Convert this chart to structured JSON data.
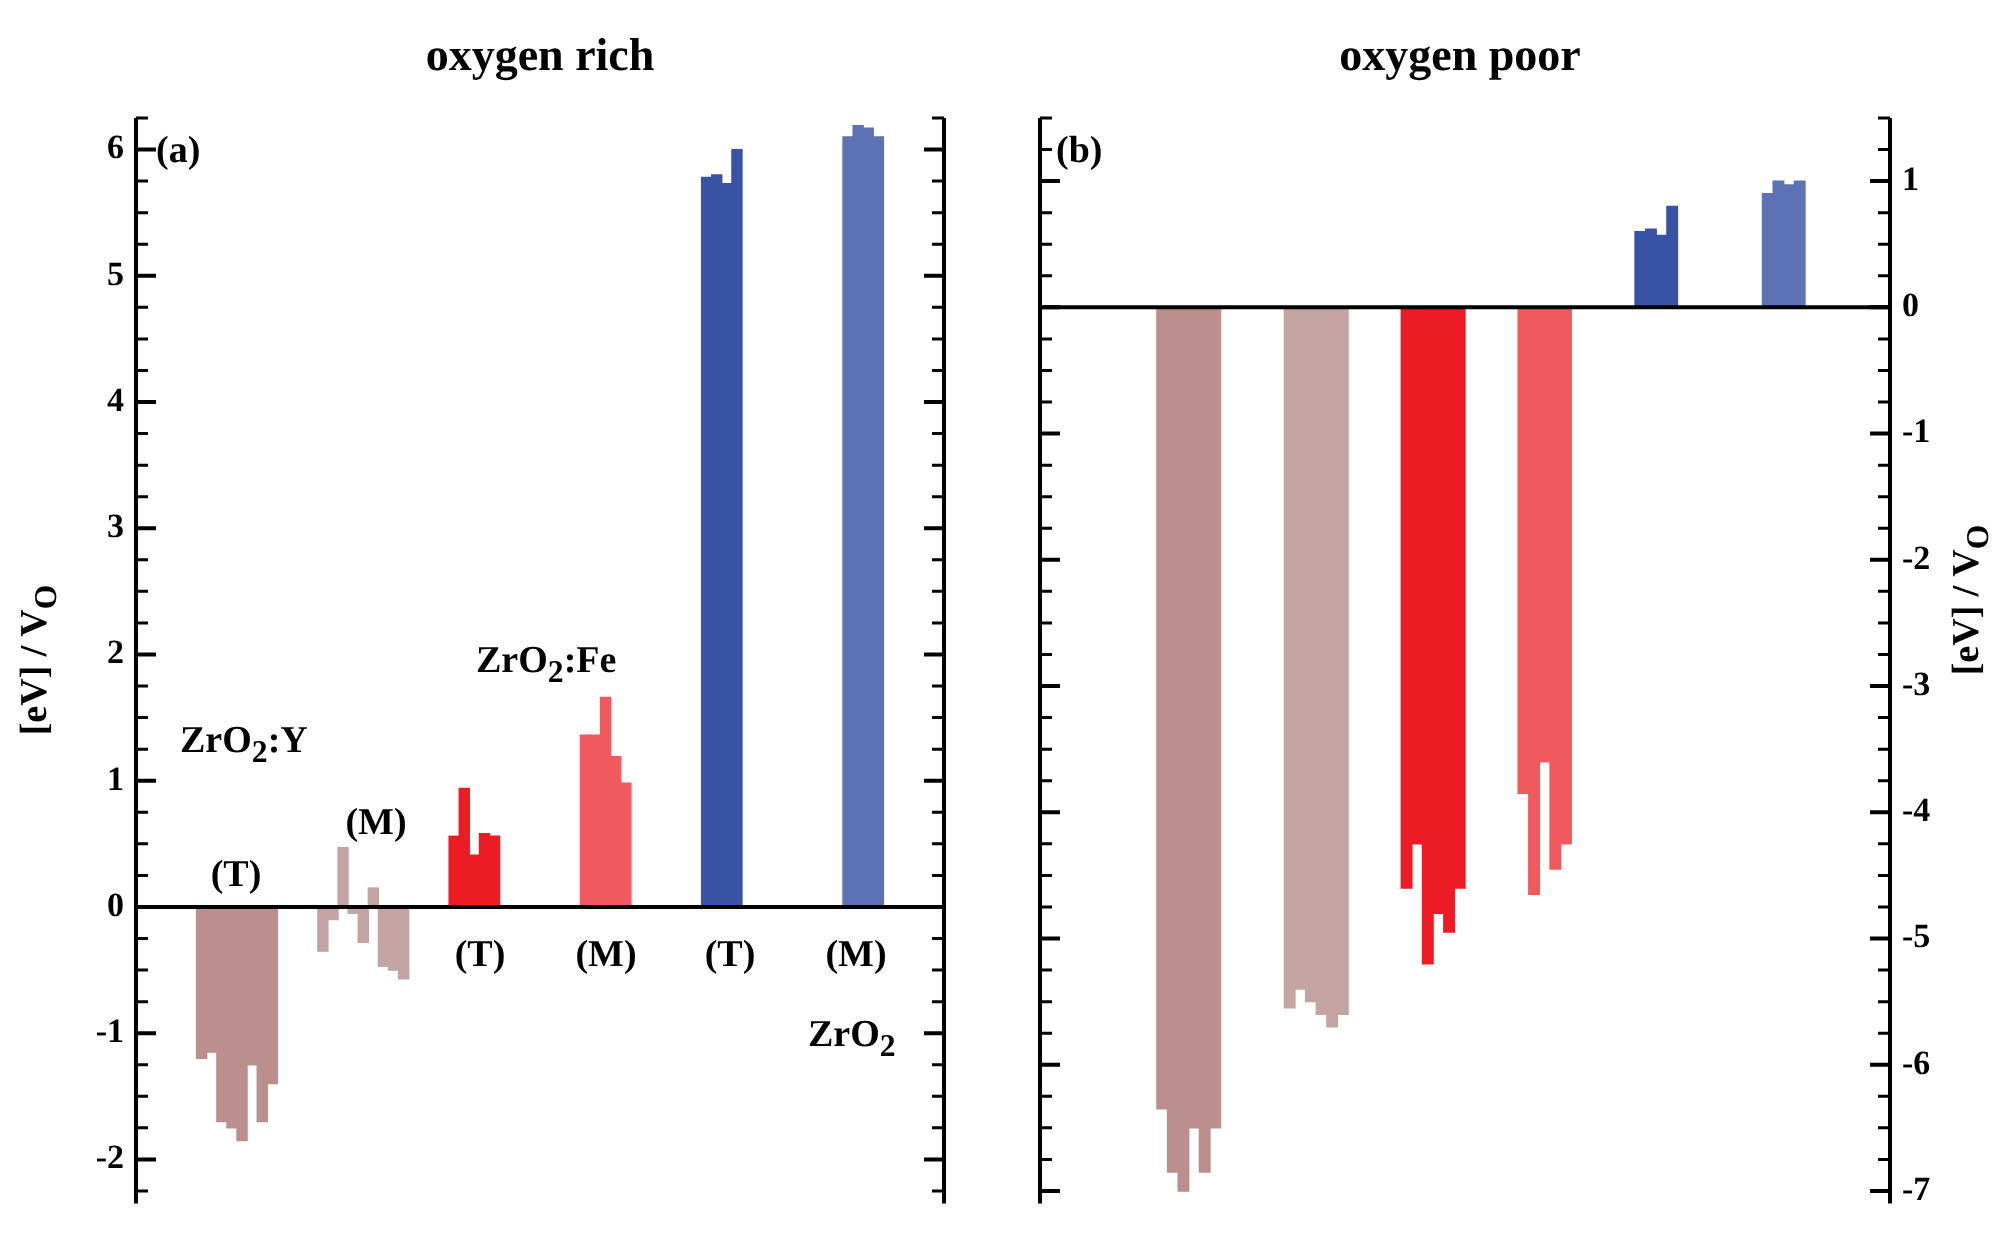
{
  "chart_data": [
    {
      "type": "bar",
      "title": "oxygen rich",
      "ylabel": "[eV] / V$_{O}$",
      "tick_labels": "y",
      "categories": [
        null,
        null,
        null,
        null,
        null,
        null,
        null,
        null,
        null,
        null,
        null,
        null,
        null,
        null,
        null,
        null,
        null,
        null,
        null,
        null,
        null,
        null,
        null,
        null,
        null,
        null,
        null,
        null,
        null,
        null,
        null,
        null,
        null,
        null,
        null,
        null,
        null,
        null,
        null,
        null,
        null,
        null,
        null,
        null,
        null,
        null,
        null,
        null,
        null,
        null,
        null,
        null,
        null,
        null,
        null,
        null,
        null,
        null,
        null,
        null,
        null,
        null,
        null,
        null,
        null,
        null,
        null,
        null,
        null,
        null,
        null,
        null,
        null,
        null,
        null,
        null,
        null,
        null,
        null,
        null
      ],
      "values": [
        null,
        null,
        null,
        null,
        null,
        null,
        -1.2,
        -1.15,
        -1.7,
        -1.75,
        -1.85,
        -1.25,
        -1.7,
        -1.4,
        null,
        null,
        null,
        null,
        -0.35,
        -0.1,
        0.47,
        -0.05,
        -0.28,
        0.15,
        -0.47,
        -0.5,
        -0.57,
        null,
        null,
        null,
        null,
        0.56,
        0.94,
        0.41,
        0.58,
        0.56,
        null,
        null,
        null,
        null,
        null,
        null,
        null,
        null,
        1.36,
        1.36,
        1.66,
        1.19,
        0.98,
        null,
        null,
        null,
        null,
        null,
        null,
        null,
        5.78,
        5.8,
        5.73,
        6.0,
        null,
        null,
        null,
        null,
        null,
        null,
        null,
        null,
        null,
        null,
        6.1,
        6.19,
        6.17,
        6.1,
        null,
        null,
        null,
        null,
        null,
        null
      ],
      "colors": [
        null,
        null,
        null,
        null,
        null,
        null,
        "#bc8f8f",
        "#bc8f8f",
        "#bc8f8f",
        "#bc8f8f",
        "#bc8f8f",
        "#bc8f8f",
        "#bc8f8f",
        "#bc8f8f",
        null,
        null,
        null,
        null,
        "#c4a3a3",
        "#c4a3a3",
        "#c4a3a3",
        "#c4a3a3",
        "#c4a3a3",
        "#c4a3a3",
        "#c4a3a3",
        "#c4a3a3",
        "#c4a3a3",
        null,
        null,
        null,
        null,
        "#ed1c24",
        "#ed1c24",
        "#ed1c24",
        "#ed1c24",
        "#ed1c24",
        null,
        null,
        null,
        null,
        null,
        null,
        null,
        null,
        "#f05a5f",
        "#f05a5f",
        "#f05a5f",
        "#f05a5f",
        "#f05a5f",
        null,
        null,
        null,
        null,
        null,
        null,
        null,
        "#3953a4",
        "#3953a4",
        "#3953a4",
        "#3953a4",
        null,
        null,
        null,
        null,
        null,
        null,
        null,
        null,
        null,
        null,
        "#5c72b4",
        "#5c72b4",
        "#5c72b4",
        "#5c72b4",
        null,
        null,
        null,
        null,
        null,
        null
      ],
      "ylim": [
        -2.35,
        6.25
      ],
      "yticks": [
        {
          "value": -2.25,
          "label": null
        },
        -2,
        {
          "value": -1.75,
          "label": null
        },
        {
          "value": -1.5,
          "label": null
        },
        {
          "value": -1.25,
          "label": null
        },
        -1,
        {
          "value": -0.75,
          "label": null
        },
        {
          "value": -0.5,
          "label": null
        },
        {
          "value": -0.25,
          "label": null
        },
        0,
        {
          "value": 0.25,
          "label": null
        },
        {
          "value": 0.5,
          "label": null
        },
        {
          "value": 0.75,
          "label": null
        },
        1,
        {
          "value": 1.25,
          "label": null
        },
        {
          "value": 1.5,
          "label": null
        },
        {
          "value": 1.75,
          "label": null
        },
        2,
        {
          "value": 2.25,
          "label": null
        },
        {
          "value": 2.5,
          "label": null
        },
        {
          "value": 2.75,
          "label": null
        },
        3,
        {
          "value": 3.25,
          "label": null
        },
        {
          "value": 3.5,
          "label": null
        },
        {
          "value": 3.75,
          "label": null
        },
        4,
        {
          "value": 4.25,
          "label": null
        },
        {
          "value": 4.5,
          "label": null
        },
        {
          "value": 4.75,
          "label": null
        },
        5,
        {
          "value": 5.25,
          "label": null
        },
        {
          "value": 5.5,
          "label": null
        },
        {
          "value": 5.75,
          "label": null
        },
        6,
        {
          "value": 6.25,
          "label": null
        }
      ],
      "annotations": [
        "(a)",
        "ZrO$_{2}$:Y",
        "(T)",
        "(M)",
        "ZrO$_{2}$:Fe",
        "(T)",
        "(M)",
        "(T)",
        "(M)",
        "ZrO$_{2}$"
      ]
    },
    {
      "type": "bar",
      "title": "oxygen poor",
      "ylabel": "[eV] / V$_{O}$",
      "tick_labels": "y",
      "categories": [
        null,
        null,
        null,
        null,
        null,
        null,
        null,
        null,
        null,
        null,
        null,
        null,
        null,
        null,
        null,
        null,
        null,
        null,
        null,
        null,
        null,
        null,
        null,
        null,
        null,
        null,
        null,
        null,
        null,
        null,
        null,
        null,
        null,
        null,
        null,
        null,
        null,
        null,
        null,
        null,
        null,
        null,
        null,
        null,
        null,
        null,
        null,
        null,
        null,
        null,
        null,
        null,
        null,
        null,
        null,
        null,
        null,
        null,
        null,
        null,
        null,
        null,
        null,
        null,
        null,
        null,
        null,
        null,
        null,
        null,
        null,
        null,
        null,
        null,
        null,
        null,
        null,
        null,
        null,
        null
      ],
      "values": [
        null,
        null,
        null,
        null,
        null,
        null,
        null,
        null,
        null,
        null,
        null,
        -6.35,
        -6.85,
        -7.0,
        -6.5,
        -6.85,
        -6.5,
        null,
        null,
        null,
        null,
        null,
        null,
        -5.55,
        -5.4,
        -5.5,
        -5.6,
        -5.7,
        -5.6,
        null,
        null,
        null,
        null,
        null,
        -4.6,
        -4.25,
        -5.2,
        -4.8,
        -4.95,
        -4.6,
        null,
        null,
        null,
        null,
        null,
        -3.85,
        -4.65,
        -3.6,
        -4.45,
        -4.25,
        null,
        null,
        null,
        null,
        null,
        null,
        0.6,
        0.62,
        0.57,
        0.8,
        null,
        null,
        null,
        null,
        null,
        null,
        null,
        null,
        0.9,
        1.0,
        0.97,
        1.0,
        null,
        null,
        null,
        null,
        null,
        null,
        null,
        null
      ],
      "colors": [
        null,
        null,
        null,
        null,
        null,
        null,
        null,
        null,
        null,
        null,
        null,
        "#bc8f8f",
        "#bc8f8f",
        "#bc8f8f",
        "#bc8f8f",
        "#bc8f8f",
        "#bc8f8f",
        null,
        null,
        null,
        null,
        null,
        null,
        "#c4a3a3",
        "#c4a3a3",
        "#c4a3a3",
        "#c4a3a3",
        "#c4a3a3",
        "#c4a3a3",
        null,
        null,
        null,
        null,
        null,
        "#ed1c24",
        "#ed1c24",
        "#ed1c24",
        "#ed1c24",
        "#ed1c24",
        "#ed1c24",
        null,
        null,
        null,
        null,
        null,
        "#f05a5f",
        "#f05a5f",
        "#f05a5f",
        "#f05a5f",
        "#f05a5f",
        null,
        null,
        null,
        null,
        null,
        null,
        "#3953a4",
        "#3953a4",
        "#3953a4",
        "#3953a4",
        null,
        null,
        null,
        null,
        null,
        null,
        null,
        null,
        "#5c72b4",
        "#5c72b4",
        "#5c72b4",
        "#5c72b4",
        null,
        null,
        null,
        null,
        null,
        null,
        null,
        null
      ],
      "ylim": [
        -7.1,
        1.5
      ],
      "yticks": [
        -7,
        {
          "value": -6.75,
          "label": null
        },
        {
          "value": -6.5,
          "label": null
        },
        {
          "value": -6.25,
          "label": null
        },
        -6,
        {
          "value": -5.75,
          "label": null
        },
        {
          "value": -5.5,
          "label": null
        },
        {
          "value": -5.25,
          "label": null
        },
        -5,
        {
          "value": -4.75,
          "label": null
        },
        {
          "value": -4.5,
          "label": null
        },
        {
          "value": -4.25,
          "label": null
        },
        -4,
        {
          "value": -3.75,
          "label": null
        },
        {
          "value": -3.5,
          "label": null
        },
        {
          "value": -3.25,
          "label": null
        },
        -3,
        {
          "value": -2.75,
          "label": null
        },
        {
          "value": -2.5,
          "label": null
        },
        {
          "value": -2.25,
          "label": null
        },
        -2,
        {
          "value": -1.75,
          "label": null
        },
        {
          "value": -1.5,
          "label": null
        },
        {
          "value": -1.25,
          "label": null
        },
        -1,
        {
          "value": -0.75,
          "label": null
        },
        {
          "value": -0.5,
          "label": null
        },
        {
          "value": -0.25,
          "label": null
        },
        0,
        {
          "value": 0.25,
          "label": null
        },
        {
          "value": 0.5,
          "label": null
        },
        {
          "value": 0.75,
          "label": null
        },
        1,
        {
          "value": 1.25,
          "label": null
        },
        {
          "value": 1.5,
          "label": null
        }
      ],
      "annotations": [
        "(b)"
      ]
    }
  ]
}
